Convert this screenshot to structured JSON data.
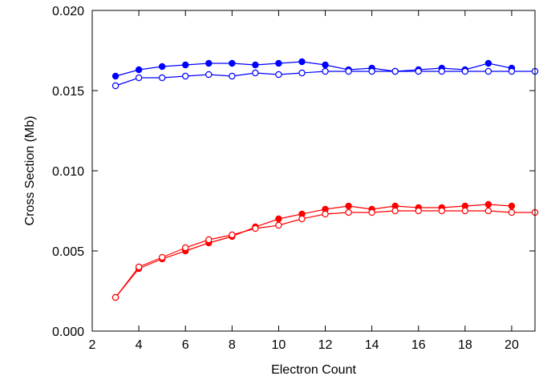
{
  "chart_data": {
    "type": "line",
    "title": "",
    "xlabel": "Electron Count",
    "ylabel": "Cross Section (Mb)",
    "xlim": [
      2,
      21
    ],
    "ylim": [
      0,
      0.02
    ],
    "x_ticks": [
      2,
      4,
      6,
      8,
      10,
      12,
      14,
      16,
      18,
      20
    ],
    "x_tick_labels": [
      "2",
      "4",
      "6",
      "8",
      "10",
      "12",
      "14",
      "16",
      "18",
      "20"
    ],
    "y_ticks": [
      0,
      0.005,
      0.01,
      0.015,
      0.02
    ],
    "y_tick_labels": [
      "0.000",
      "0.005",
      "0.010",
      "0.015",
      "0.020"
    ],
    "grid": false,
    "legend": "none",
    "series": [
      {
        "color": "#0000ff",
        "marker": "filled-circle",
        "x": [
          3,
          4,
          5,
          6,
          7,
          8,
          9,
          10,
          11,
          12,
          13,
          14,
          15,
          16,
          17,
          18,
          19,
          20
        ],
        "y": [
          0.0159,
          0.0163,
          0.0165,
          0.0166,
          0.0167,
          0.0167,
          0.0166,
          0.0167,
          0.0168,
          0.0166,
          0.0163,
          0.0164,
          0.0162,
          0.0163,
          0.0164,
          0.0163,
          0.0167,
          0.0164
        ]
      },
      {
        "color": "#0000ff",
        "marker": "open-circle",
        "x": [
          3,
          4,
          5,
          6,
          7,
          8,
          9,
          10,
          11,
          12,
          13,
          14,
          15,
          16,
          17,
          18,
          19,
          20,
          21
        ],
        "y": [
          0.0153,
          0.0158,
          0.0158,
          0.0159,
          0.016,
          0.0159,
          0.0161,
          0.016,
          0.0161,
          0.0162,
          0.0162,
          0.0162,
          0.0162,
          0.0162,
          0.0162,
          0.0162,
          0.0162,
          0.0162,
          0.0162
        ]
      },
      {
        "color": "#ff0000",
        "marker": "filled-circle",
        "x": [
          3,
          4,
          5,
          6,
          7,
          8,
          9,
          10,
          11,
          12,
          13,
          14,
          15,
          16,
          17,
          18,
          19,
          20
        ],
        "y": [
          0.0021,
          0.0039,
          0.0045,
          0.005,
          0.0055,
          0.0059,
          0.0065,
          0.007,
          0.0073,
          0.0076,
          0.0078,
          0.0076,
          0.0078,
          0.0077,
          0.0077,
          0.0078,
          0.0079,
          0.0078
        ]
      },
      {
        "color": "#ff0000",
        "marker": "open-circle",
        "x": [
          3,
          4,
          5,
          6,
          7,
          8,
          9,
          10,
          11,
          12,
          13,
          14,
          15,
          16,
          17,
          18,
          19,
          20,
          21
        ],
        "y": [
          0.0021,
          0.004,
          0.0046,
          0.0052,
          0.0057,
          0.006,
          0.0064,
          0.0066,
          0.007,
          0.0073,
          0.0074,
          0.0074,
          0.0075,
          0.0075,
          0.0075,
          0.0075,
          0.0075,
          0.0074,
          0.0074
        ]
      }
    ]
  }
}
